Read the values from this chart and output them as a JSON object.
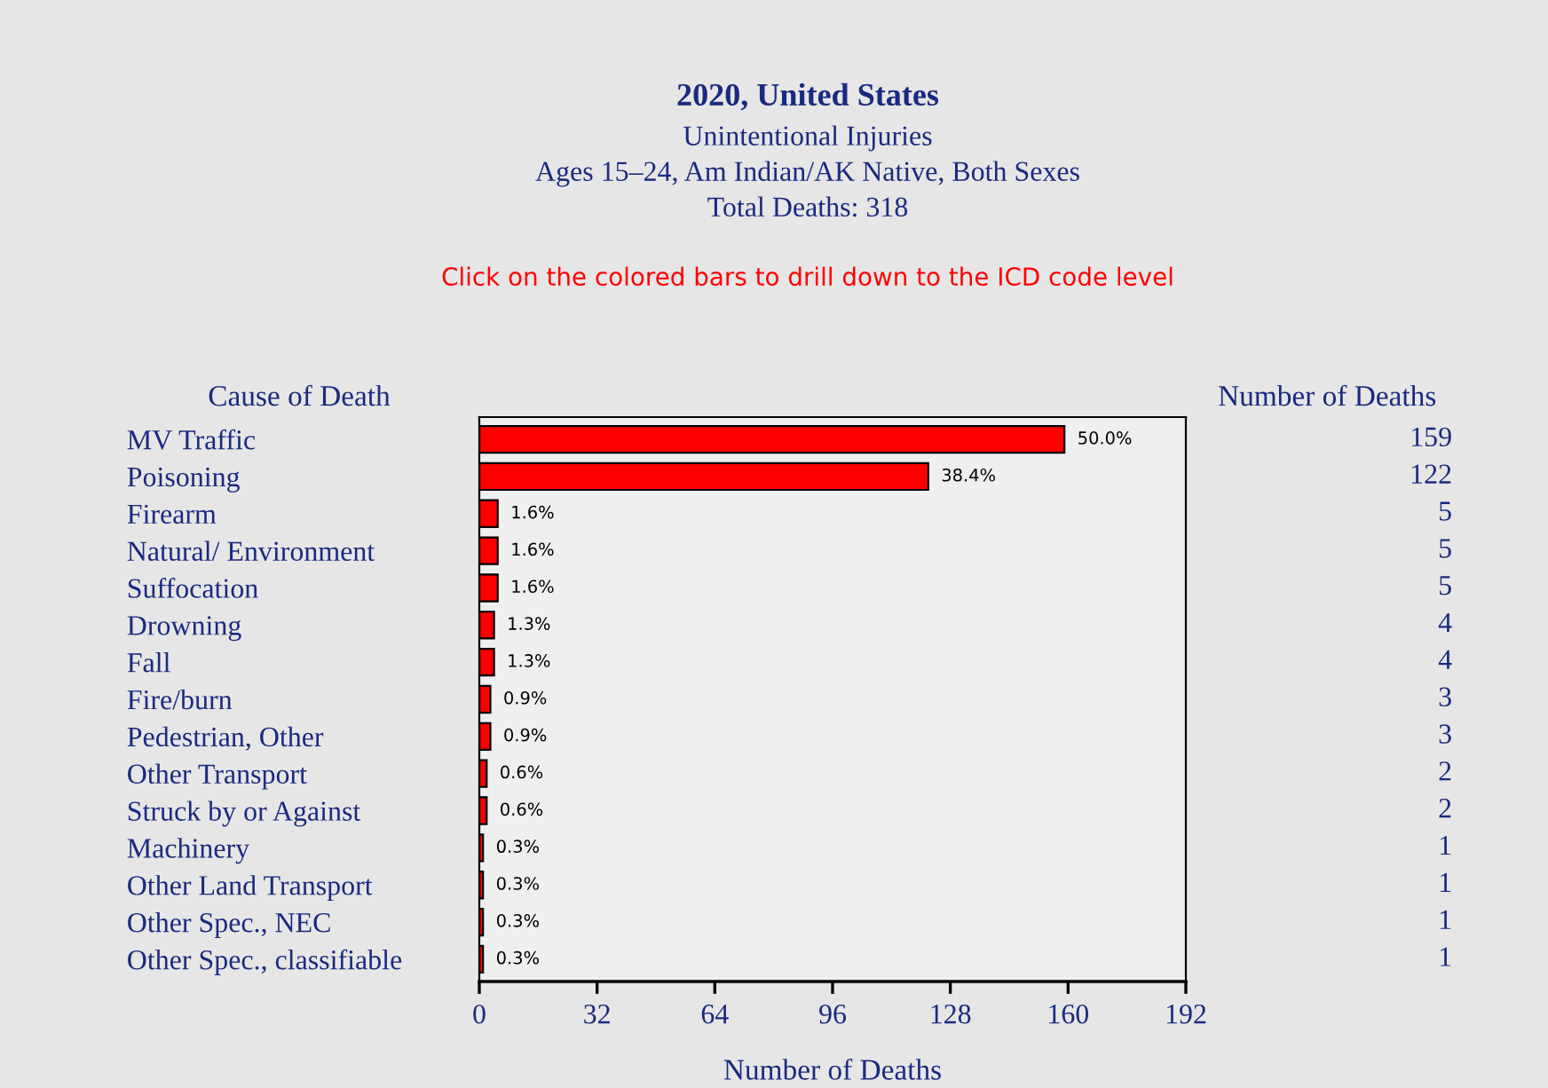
{
  "chart_data": {
    "type": "bar",
    "orientation": "horizontal",
    "title": "2020, United States",
    "subtitle": "Unintentional Injuries\nAges 15–24, Am Indian/AK Native, Both Sexes\nTotal Deaths: 318",
    "xlabel": "Number of Deaths",
    "ylabel": "Cause of Death",
    "annotations": [
      "Click on the colored bars to drill down to the ICD code level",
      "Number of Deaths",
      {
        "text": "50.0%",
        "x": 159,
        "y": "MV Traffic"
      },
      {
        "text": "38.4%",
        "x": 122,
        "y": "Poisoning"
      },
      {
        "text": "1.6%",
        "x": 5,
        "y": "Firearm"
      },
      {
        "text": "1.6%",
        "x": 5,
        "y": "Natural/ Environment"
      },
      {
        "text": "1.6%",
        "x": 5,
        "y": "Suffocation"
      },
      {
        "text": "1.3%",
        "x": 4,
        "y": "Drowning"
      },
      {
        "text": "1.3%",
        "x": 4,
        "y": "Fall"
      },
      {
        "text": "0.9%",
        "x": 3,
        "y": "Fire/burn"
      },
      {
        "text": "0.9%",
        "x": 3,
        "y": "Pedestrian, Other"
      },
      {
        "text": "0.6%",
        "x": 2,
        "y": "Other Transport"
      },
      {
        "text": "0.6%",
        "x": 2,
        "y": "Struck by or Against"
      },
      {
        "text": "0.3%",
        "x": 1,
        "y": "Machinery"
      },
      {
        "text": "0.3%",
        "x": 1,
        "y": "Other Land Transport"
      },
      {
        "text": "0.3%",
        "x": 1,
        "y": "Other Spec., NEC"
      },
      {
        "text": "0.3%",
        "x": 1,
        "y": "Other Spec., classifiable"
      }
    ],
    "categories": [
      "MV Traffic",
      "Poisoning",
      "Firearm",
      "Natural/ Environment",
      "Suffocation",
      "Drowning",
      "Fall",
      "Fire/burn",
      "Pedestrian, Other",
      "Other Transport",
      "Struck by or Against",
      "Machinery",
      "Other Land Transport",
      "Other Spec., NEC",
      "Other Spec., classifiable"
    ],
    "values": [
      159,
      122,
      5,
      5,
      5,
      4,
      4,
      3,
      3,
      2,
      2,
      1,
      1,
      1,
      1
    ],
    "data_labels": true,
    "color": "#ff0000",
    "xlim": [
      0,
      192
    ],
    "xticks": [
      0,
      32,
      64,
      96,
      128,
      160,
      192
    ],
    "grid": false
  }
}
